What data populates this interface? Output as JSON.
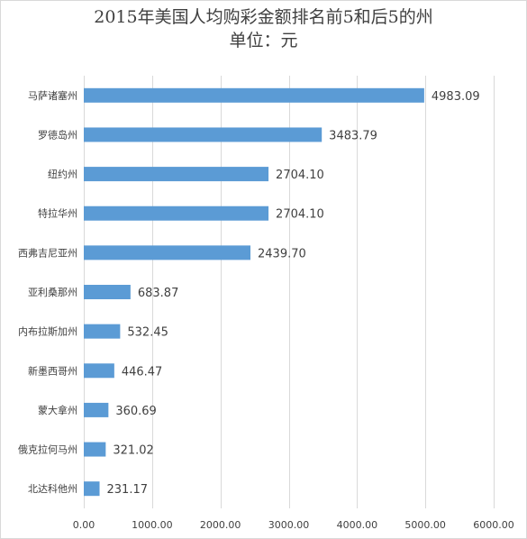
{
  "chart_data": {
    "type": "bar",
    "orientation": "horizontal",
    "title": "2015年美国人均购彩金额排名前5和后5的州",
    "subtitle": "单位：元",
    "categories": [
      "马萨诸塞州",
      "罗德岛州",
      "纽约州",
      "特拉华州",
      "西弗吉尼亚州",
      "亚利桑那州",
      "内布拉斯加州",
      "新墨西哥州",
      "蒙大拿州",
      "俄克拉何马州",
      "北达科他州"
    ],
    "values": [
      4983.09,
      3483.79,
      2704.1,
      2704.1,
      2439.7,
      683.87,
      532.45,
      446.47,
      360.69,
      321.02,
      231.17
    ],
    "value_labels": [
      "4983.09",
      "3483.79",
      "2704.10",
      "2704.10",
      "2439.70",
      "683.87",
      "532.45",
      "446.47",
      "360.69",
      "321.02",
      "231.17"
    ],
    "x_ticks": [
      "0.00",
      "1000.00",
      "2000.00",
      "3000.00",
      "4000.00",
      "5000.00",
      "6000.00"
    ],
    "xlim": [
      0,
      6000
    ],
    "grid": "vertical",
    "legend": "none",
    "bar_color": "#5b9bd5",
    "grid_color": "#d9d9d9",
    "text_color": "#404040"
  }
}
